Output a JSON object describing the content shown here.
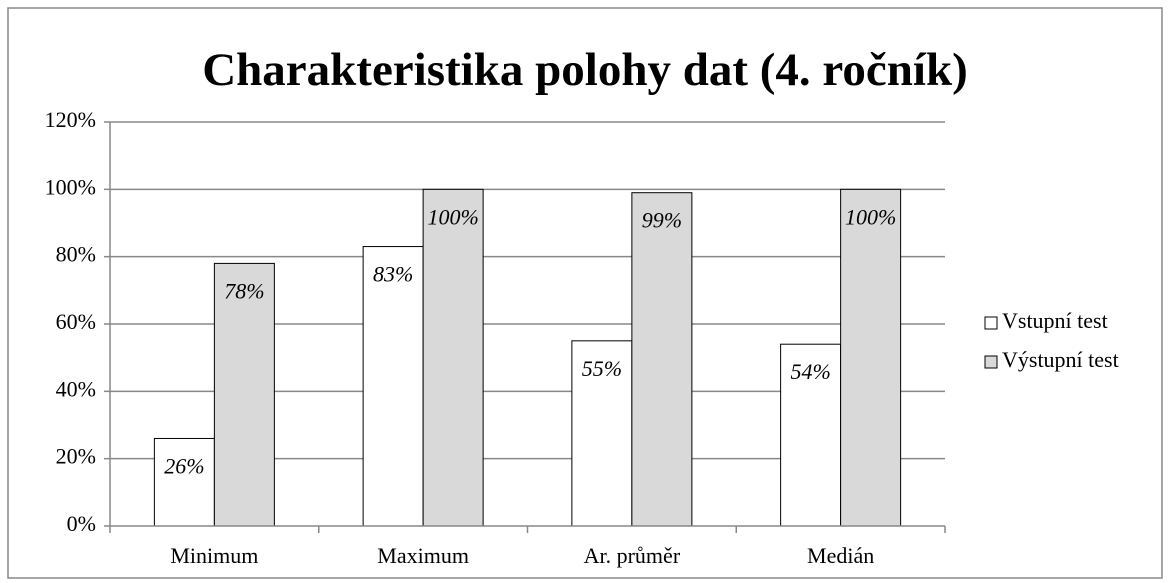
{
  "chart_data": {
    "type": "bar",
    "title": "Charakteristika polohy dat (4. ročník)",
    "categories": [
      "Minimum",
      "Maximum",
      "Ar. průměr",
      "Medián"
    ],
    "series": [
      {
        "name": "Vstupní test",
        "color": "#ffffff",
        "values": [
          26,
          83,
          55,
          54
        ],
        "value_labels": [
          "26%",
          "83%",
          "55%",
          "54%"
        ]
      },
      {
        "name": "Výstupní test",
        "color": "#d9d9d9",
        "values": [
          78,
          100,
          99,
          100
        ],
        "value_labels": [
          "78%",
          "100%",
          "99%",
          "100%"
        ]
      }
    ],
    "ylim": [
      0,
      120
    ],
    "yticks": [
      {
        "value": 0,
        "label": "0%"
      },
      {
        "value": 20,
        "label": "20%"
      },
      {
        "value": 40,
        "label": "40%"
      },
      {
        "value": 60,
        "label": "60%"
      },
      {
        "value": 80,
        "label": "80%"
      },
      {
        "value": 100,
        "label": "100%"
      },
      {
        "value": 120,
        "label": "120%"
      }
    ],
    "grid": true,
    "legend": "right"
  }
}
